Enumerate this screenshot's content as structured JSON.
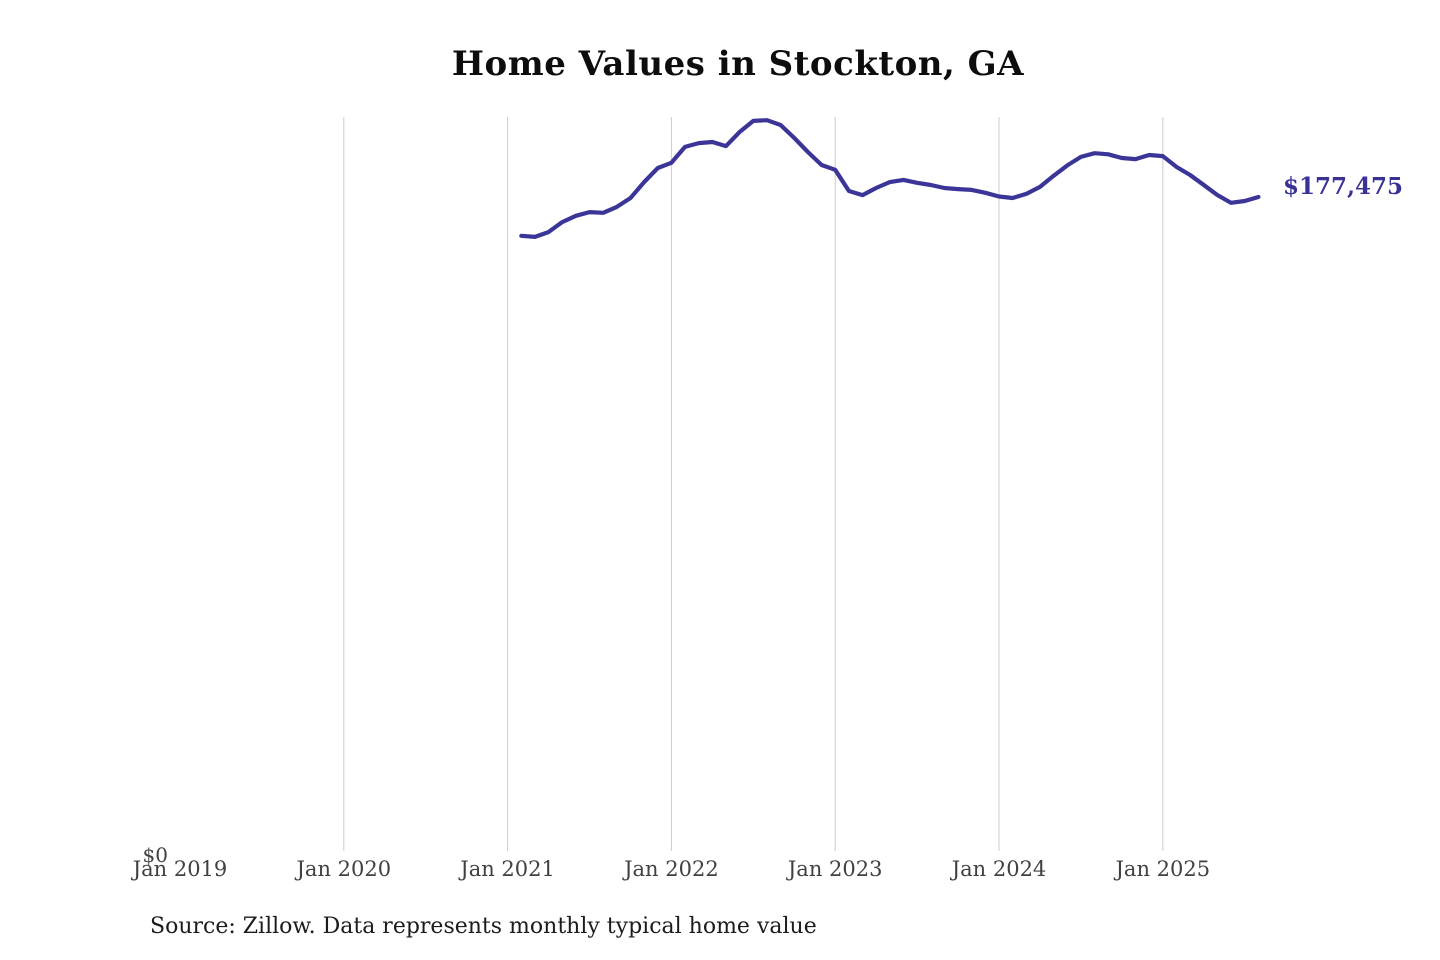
{
  "title": "Home Values in Stockton, GA",
  "source": "Source: Zillow. Data represents monthly typical home value",
  "chart_data": {
    "type": "line",
    "title": "Home Values in Stockton, GA",
    "xlabel": "",
    "ylabel": "",
    "x_tick_labels": [
      "Jan 2019",
      "Jan 2020",
      "Jan 2021",
      "Jan 2022",
      "Jan 2023",
      "Jan 2024",
      "Jan 2025"
    ],
    "y_tick_labels": [
      "$0"
    ],
    "ylim": [
      0,
      200000
    ],
    "x_start": "Feb 2021",
    "x_end": "Aug 2025",
    "frequency": "monthly",
    "grid": "vertical-year-gridlines-only-2020-through-2025",
    "legend": "none",
    "line_color": "#3b3597",
    "gridline_color": "#cdcdcd",
    "end_label": "$177,475",
    "end_value": 177475,
    "series": [
      {
        "name": "Typical home value",
        "values": [
          167000,
          166700,
          168000,
          170700,
          172400,
          173400,
          173200,
          174800,
          177200,
          181500,
          185300,
          186700,
          191000,
          192000,
          192300,
          191200,
          195000,
          198000,
          198200,
          196900,
          193400,
          189600,
          186100,
          184800,
          179100,
          178000,
          179900,
          181500,
          182100,
          181300,
          180700,
          179900,
          179600,
          179400,
          178600,
          177600,
          177200,
          178300,
          180200,
          183200,
          186000,
          188300,
          189300,
          189000,
          188000,
          187700,
          188800,
          188500,
          185600,
          183400,
          180700,
          178000,
          175900,
          176400,
          177475
        ]
      }
    ]
  }
}
